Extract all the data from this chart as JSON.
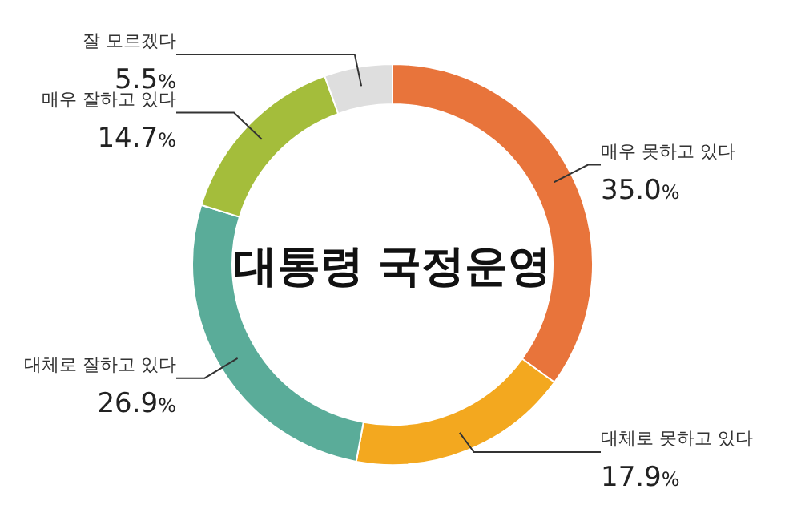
{
  "chart_data": {
    "type": "donut",
    "title": "대통령 국정운영",
    "categories": [
      "매우 못하고 있다",
      "대체로 못하고 있다",
      "대체로 잘하고 있다",
      "매우 잘하고 있다",
      "잘 모르겠다"
    ],
    "values": [
      35.0,
      17.9,
      26.9,
      14.7,
      5.5
    ],
    "colors": [
      "#e8743b",
      "#f3a81f",
      "#5aac99",
      "#a4bd3b",
      "#dedede"
    ],
    "value_labels": [
      "35.0%",
      "17.9%",
      "26.9%",
      "14.7%",
      "5.5%"
    ]
  }
}
